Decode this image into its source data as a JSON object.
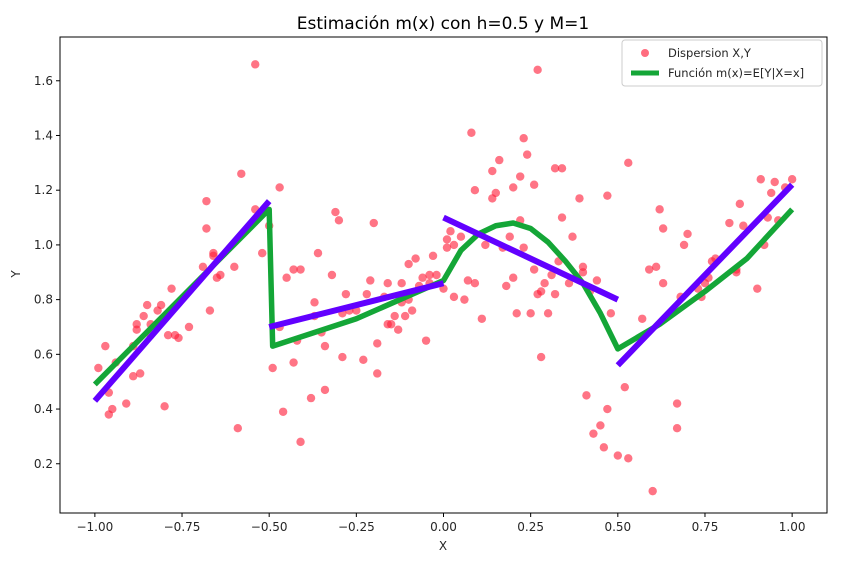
{
  "chart_data": {
    "type": "scatter",
    "title": "Estimación m(x) con h=0.5 y M=1",
    "xlabel": "X",
    "ylabel": "Y",
    "xlim": [
      -1.1,
      1.1
    ],
    "ylim": [
      0.02,
      1.76
    ],
    "xticks": [
      -1.0,
      -0.75,
      -0.5,
      -0.25,
      0.0,
      0.25,
      0.5,
      0.75,
      1.0
    ],
    "xtick_labels": [
      "−1.00",
      "−0.75",
      "−0.50",
      "−0.25",
      "0.00",
      "0.25",
      "0.50",
      "0.75",
      "1.00"
    ],
    "yticks": [
      0.2,
      0.4,
      0.6,
      0.8,
      1.0,
      1.2,
      1.4,
      1.6
    ],
    "ytick_labels": [
      "0.2",
      "0.4",
      "0.6",
      "0.8",
      "1.0",
      "1.2",
      "1.4",
      "1.6"
    ],
    "grid": false,
    "legend": {
      "position": "top-right",
      "entries": [
        {
          "label": "Dispersion X,Y",
          "kind": "marker",
          "color": "#ff1f3a"
        },
        {
          "label": "Función m(x)=E[Y|X=x]",
          "kind": "line",
          "color": "#14a637"
        }
      ]
    },
    "scatter_series": {
      "name": "Dispersion X,Y",
      "color": "#ff1f3a",
      "points": [
        [
          -0.99,
          0.55
        ],
        [
          -0.97,
          0.63
        ],
        [
          -0.96,
          0.46
        ],
        [
          -0.96,
          0.38
        ],
        [
          -0.95,
          0.4
        ],
        [
          -0.94,
          0.57
        ],
        [
          -0.91,
          0.42
        ],
        [
          -0.89,
          0.63
        ],
        [
          -0.89,
          0.52
        ],
        [
          -0.88,
          0.69
        ],
        [
          -0.88,
          0.71
        ],
        [
          -0.87,
          0.53
        ],
        [
          -0.86,
          0.74
        ],
        [
          -0.85,
          0.78
        ],
        [
          -0.84,
          0.67
        ],
        [
          -0.84,
          0.71
        ],
        [
          -0.82,
          0.76
        ],
        [
          -0.81,
          0.78
        ],
        [
          -0.8,
          0.41
        ],
        [
          -0.79,
          0.67
        ],
        [
          -0.78,
          0.84
        ],
        [
          -0.77,
          0.67
        ],
        [
          -0.76,
          0.66
        ],
        [
          -0.73,
          0.7
        ],
        [
          -0.69,
          0.92
        ],
        [
          -0.68,
          1.06
        ],
        [
          -0.68,
          1.16
        ],
        [
          -0.67,
          0.76
        ],
        [
          -0.66,
          0.97
        ],
        [
          -0.66,
          0.96
        ],
        [
          -0.65,
          0.88
        ],
        [
          -0.64,
          0.89
        ],
        [
          -0.6,
          0.92
        ],
        [
          -0.59,
          0.33
        ],
        [
          -0.58,
          1.26
        ],
        [
          -0.54,
          1.13
        ],
        [
          -0.54,
          1.66
        ],
        [
          -0.52,
          0.97
        ],
        [
          -0.5,
          1.07
        ],
        [
          -0.49,
          0.55
        ],
        [
          -0.47,
          0.7
        ],
        [
          -0.47,
          1.21
        ],
        [
          -0.46,
          0.39
        ],
        [
          -0.45,
          0.88
        ],
        [
          -0.43,
          0.91
        ],
        [
          -0.43,
          0.57
        ],
        [
          -0.42,
          0.65
        ],
        [
          -0.41,
          0.91
        ],
        [
          -0.41,
          0.28
        ],
        [
          -0.38,
          0.44
        ],
        [
          -0.37,
          0.79
        ],
        [
          -0.37,
          0.74
        ],
        [
          -0.36,
          0.97
        ],
        [
          -0.35,
          0.68
        ],
        [
          -0.34,
          0.63
        ],
        [
          -0.34,
          0.47
        ],
        [
          -0.32,
          0.89
        ],
        [
          -0.31,
          1.12
        ],
        [
          -0.3,
          1.09
        ],
        [
          -0.29,
          0.59
        ],
        [
          -0.29,
          0.75
        ],
        [
          -0.28,
          0.82
        ],
        [
          -0.27,
          0.76
        ],
        [
          -0.25,
          0.76
        ],
        [
          -0.23,
          0.58
        ],
        [
          -0.22,
          0.82
        ],
        [
          -0.21,
          0.87
        ],
        [
          -0.2,
          1.08
        ],
        [
          -0.19,
          0.53
        ],
        [
          -0.19,
          0.64
        ],
        [
          -0.17,
          0.81
        ],
        [
          -0.16,
          0.71
        ],
        [
          -0.16,
          0.86
        ],
        [
          -0.15,
          0.71
        ],
        [
          -0.14,
          0.74
        ],
        [
          -0.13,
          0.69
        ],
        [
          -0.12,
          0.86
        ],
        [
          -0.12,
          0.79
        ],
        [
          -0.11,
          0.74
        ],
        [
          -0.1,
          0.8
        ],
        [
          -0.1,
          0.93
        ],
        [
          -0.09,
          0.76
        ],
        [
          -0.08,
          0.95
        ],
        [
          -0.07,
          0.85
        ],
        [
          -0.06,
          0.88
        ],
        [
          -0.05,
          0.65
        ],
        [
          -0.04,
          0.86
        ],
        [
          -0.04,
          0.89
        ],
        [
          -0.03,
          0.96
        ],
        [
          -0.02,
          0.89
        ],
        [
          0.0,
          0.84
        ],
        [
          0.01,
          0.99
        ],
        [
          0.01,
          1.02
        ],
        [
          0.02,
          1.05
        ],
        [
          0.03,
          0.81
        ],
        [
          0.03,
          1.0
        ],
        [
          0.05,
          1.03
        ],
        [
          0.06,
          0.8
        ],
        [
          0.07,
          0.87
        ],
        [
          0.08,
          1.41
        ],
        [
          0.09,
          0.86
        ],
        [
          0.09,
          1.2
        ],
        [
          0.11,
          0.73
        ],
        [
          0.12,
          1.0
        ],
        [
          0.14,
          1.27
        ],
        [
          0.14,
          1.17
        ],
        [
          0.15,
          1.19
        ],
        [
          0.16,
          1.31
        ],
        [
          0.17,
          0.99
        ],
        [
          0.18,
          0.85
        ],
        [
          0.19,
          1.03
        ],
        [
          0.2,
          1.21
        ],
        [
          0.2,
          0.88
        ],
        [
          0.21,
          0.75
        ],
        [
          0.22,
          1.09
        ],
        [
          0.22,
          1.25
        ],
        [
          0.23,
          0.99
        ],
        [
          0.23,
          1.39
        ],
        [
          0.24,
          1.33
        ],
        [
          0.25,
          0.75
        ],
        [
          0.26,
          1.22
        ],
        [
          0.26,
          0.91
        ],
        [
          0.27,
          1.64
        ],
        [
          0.27,
          0.82
        ],
        [
          0.28,
          0.83
        ],
        [
          0.28,
          0.59
        ],
        [
          0.29,
          0.86
        ],
        [
          0.3,
          0.75
        ],
        [
          0.31,
          0.89
        ],
        [
          0.32,
          0.82
        ],
        [
          0.32,
          1.28
        ],
        [
          0.33,
          0.94
        ],
        [
          0.34,
          1.28
        ],
        [
          0.34,
          1.1
        ],
        [
          0.36,
          0.86
        ],
        [
          0.37,
          1.03
        ],
        [
          0.39,
          1.17
        ],
        [
          0.4,
          0.9
        ],
        [
          0.4,
          0.92
        ],
        [
          0.41,
          0.45
        ],
        [
          0.42,
          0.83
        ],
        [
          0.43,
          0.31
        ],
        [
          0.44,
          0.87
        ],
        [
          0.45,
          0.34
        ],
        [
          0.46,
          0.26
        ],
        [
          0.47,
          0.4
        ],
        [
          0.47,
          1.18
        ],
        [
          0.48,
          0.75
        ],
        [
          0.5,
          0.23
        ],
        [
          0.52,
          0.48
        ],
        [
          0.53,
          1.3
        ],
        [
          0.53,
          0.22
        ],
        [
          0.57,
          0.73
        ],
        [
          0.59,
          0.91
        ],
        [
          0.6,
          0.1
        ],
        [
          0.61,
          0.92
        ],
        [
          0.62,
          1.13
        ],
        [
          0.63,
          1.06
        ],
        [
          0.63,
          0.86
        ],
        [
          0.67,
          0.33
        ],
        [
          0.67,
          0.42
        ],
        [
          0.68,
          0.81
        ],
        [
          0.69,
          1.0
        ],
        [
          0.7,
          1.04
        ],
        [
          0.73,
          0.84
        ],
        [
          0.74,
          0.81
        ],
        [
          0.75,
          0.86
        ],
        [
          0.76,
          0.88
        ],
        [
          0.77,
          0.94
        ],
        [
          0.78,
          0.95
        ],
        [
          0.82,
          1.08
        ],
        [
          0.84,
          0.9
        ],
        [
          0.84,
          0.91
        ],
        [
          0.85,
          1.15
        ],
        [
          0.86,
          1.07
        ],
        [
          0.9,
          0.84
        ],
        [
          0.91,
          1.24
        ],
        [
          0.92,
          1.0
        ],
        [
          0.93,
          1.1
        ],
        [
          0.94,
          1.19
        ],
        [
          0.95,
          1.23
        ],
        [
          0.98,
          1.21
        ],
        [
          1.0,
          1.24
        ],
        [
          0.96,
          1.09
        ]
      ]
    },
    "line_series": [
      {
        "name": "Función m(x)=E[Y|X=x]",
        "color": "#14a637",
        "points": [
          [
            -1.0,
            0.49
          ],
          [
            -0.5,
            1.13
          ],
          [
            -0.49,
            0.63
          ],
          [
            -0.25,
            0.73
          ],
          [
            0.0,
            0.87
          ],
          [
            0.05,
            0.98
          ],
          [
            0.1,
            1.04
          ],
          [
            0.15,
            1.07
          ],
          [
            0.2,
            1.08
          ],
          [
            0.25,
            1.06
          ],
          [
            0.3,
            1.01
          ],
          [
            0.35,
            0.94
          ],
          [
            0.4,
            0.86
          ],
          [
            0.45,
            0.75
          ],
          [
            0.5,
            0.62
          ],
          [
            0.62,
            0.71
          ],
          [
            0.75,
            0.83
          ],
          [
            0.87,
            0.95
          ],
          [
            1.0,
            1.13
          ]
        ]
      },
      {
        "name": "",
        "color": "#6200ff",
        "points": [
          [
            -1.0,
            0.43
          ],
          [
            -0.5,
            1.16
          ]
        ]
      },
      {
        "name": "",
        "color": "#6200ff",
        "points": [
          [
            -0.5,
            0.7
          ],
          [
            0.0,
            0.86
          ]
        ]
      },
      {
        "name": "",
        "color": "#6200ff",
        "points": [
          [
            0.0,
            1.1
          ],
          [
            0.5,
            0.8
          ]
        ]
      },
      {
        "name": "",
        "color": "#6200ff",
        "points": [
          [
            0.5,
            0.56
          ],
          [
            1.0,
            1.22
          ]
        ]
      }
    ]
  }
}
